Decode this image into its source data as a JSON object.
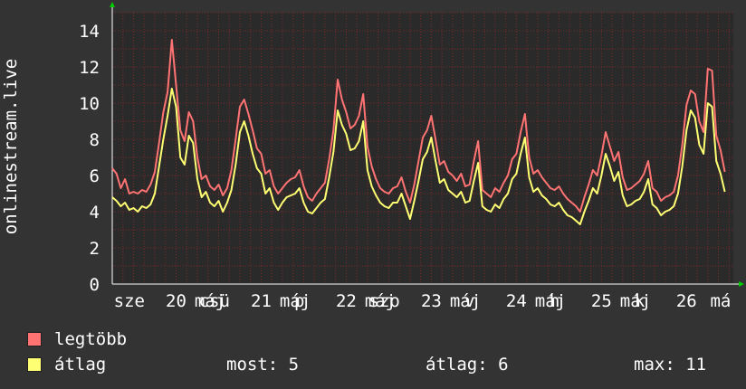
{
  "chart_data": {
    "type": "line",
    "title": "",
    "ylabel": "onlinestream.live",
    "xlabel": "",
    "ylim": [
      0,
      15
    ],
    "yticks": [
      0,
      2,
      4,
      6,
      8,
      10,
      12,
      14
    ],
    "x_tick_labels": [
      {
        "label": "sze",
        "x": 0.2
      },
      {
        "label": "20",
        "x": 0.75
      },
      {
        "label": "máj",
        "x": 1.15
      },
      {
        "label": "csü",
        "x": 1.2
      },
      {
        "label": "21",
        "x": 1.75
      },
      {
        "label": "máj",
        "x": 2.15
      },
      {
        "label": "p",
        "x": 2.2
      },
      {
        "label": "22",
        "x": 2.75
      },
      {
        "label": "máj",
        "x": 3.15
      },
      {
        "label": "szo",
        "x": 3.2
      },
      {
        "label": "23",
        "x": 3.75
      },
      {
        "label": "máj",
        "x": 4.15
      },
      {
        "label": "v",
        "x": 4.2
      },
      {
        "label": "24",
        "x": 4.75
      },
      {
        "label": "máj",
        "x": 5.15
      },
      {
        "label": "h",
        "x": 5.2
      },
      {
        "label": "25",
        "x": 5.75
      },
      {
        "label": "máj",
        "x": 6.15
      },
      {
        "label": "k",
        "x": 6.2
      },
      {
        "label": "26",
        "x": 6.75
      },
      {
        "label": "má",
        "x": 7.15
      }
    ],
    "xlim": [
      0,
      7.3
    ],
    "grid": true,
    "legend_position": "bottom",
    "series": [
      {
        "name": "legtöbb",
        "color": "#ff7373",
        "x": [
          0.0,
          0.05,
          0.1,
          0.15,
          0.2,
          0.25,
          0.3,
          0.35,
          0.4,
          0.45,
          0.5,
          0.55,
          0.6,
          0.65,
          0.7,
          0.75,
          0.8,
          0.85,
          0.9,
          0.95,
          1.0,
          1.05,
          1.1,
          1.15,
          1.2,
          1.25,
          1.3,
          1.35,
          1.4,
          1.45,
          1.5,
          1.55,
          1.6,
          1.65,
          1.7,
          1.75,
          1.8,
          1.85,
          1.9,
          1.95,
          2.0,
          2.05,
          2.1,
          2.15,
          2.2,
          2.25,
          2.3,
          2.35,
          2.4,
          2.45,
          2.5,
          2.55,
          2.6,
          2.65,
          2.7,
          2.75,
          2.8,
          2.85,
          2.9,
          2.95,
          3.0,
          3.05,
          3.1,
          3.15,
          3.2,
          3.25,
          3.3,
          3.35,
          3.4,
          3.45,
          3.5,
          3.55,
          3.6,
          3.65,
          3.7,
          3.75,
          3.8,
          3.85,
          3.9,
          3.95,
          4.0,
          4.05,
          4.1,
          4.15,
          4.2,
          4.25,
          4.3,
          4.35,
          4.4,
          4.45,
          4.5,
          4.55,
          4.6,
          4.65,
          4.7,
          4.75,
          4.8,
          4.85,
          4.9,
          4.95,
          5.0,
          5.05,
          5.1,
          5.15,
          5.2,
          5.25,
          5.3,
          5.35,
          5.4,
          5.45,
          5.5,
          5.55,
          5.6,
          5.65,
          5.7,
          5.75,
          5.8,
          5.85,
          5.9,
          5.95,
          6.0,
          6.05,
          6.1,
          6.15,
          6.2,
          6.25,
          6.3,
          6.35,
          6.4,
          6.45,
          6.5,
          6.55,
          6.6,
          6.65,
          6.7,
          6.75,
          6.8,
          6.85,
          6.9,
          6.95,
          7.0,
          7.05,
          7.1,
          7.15,
          7.2
        ],
        "values": [
          6.4,
          6.1,
          5.3,
          5.8,
          5.0,
          5.1,
          5.0,
          5.2,
          5.1,
          5.5,
          6.2,
          7.8,
          9.5,
          10.6,
          13.5,
          11.0,
          8.5,
          7.9,
          9.5,
          9.0,
          7.0,
          5.8,
          6.0,
          5.4,
          5.2,
          5.5,
          4.9,
          5.3,
          6.3,
          8.0,
          9.8,
          10.2,
          9.4,
          8.5,
          7.5,
          7.2,
          6.1,
          6.3,
          5.4,
          5.0,
          5.3,
          5.6,
          5.8,
          5.9,
          6.3,
          5.4,
          4.8,
          4.6,
          5.0,
          5.3,
          5.6,
          6.9,
          8.5,
          11.3,
          10.2,
          9.5,
          8.6,
          8.8,
          9.3,
          10.5,
          7.6,
          6.5,
          5.8,
          5.3,
          5.1,
          5.0,
          5.3,
          5.4,
          5.9,
          5.1,
          4.5,
          5.5,
          6.8,
          8.1,
          8.5,
          9.3,
          8.0,
          6.6,
          6.8,
          6.2,
          6.0,
          5.7,
          6.1,
          5.4,
          5.5,
          6.8,
          7.9,
          5.2,
          5.0,
          4.8,
          5.3,
          5.1,
          5.6,
          6.0,
          6.9,
          7.2,
          8.4,
          9.4,
          7.0,
          6.1,
          6.3,
          5.9,
          5.6,
          5.3,
          5.2,
          5.4,
          5.0,
          4.7,
          4.5,
          4.3,
          4.0,
          4.8,
          5.5,
          6.3,
          6.0,
          7.1,
          8.4,
          7.6,
          6.8,
          7.3,
          5.9,
          5.2,
          5.3,
          5.5,
          5.7,
          6.1,
          6.8,
          5.3,
          5.1,
          4.6,
          4.8,
          4.9,
          5.1,
          6.0,
          7.7,
          9.9,
          10.7,
          10.5,
          9.0,
          8.4,
          11.9,
          11.8,
          8.2,
          7.4,
          6.2
        ]
      },
      {
        "name": "átlag",
        "color": "#ffff73",
        "x": [
          0.0,
          0.05,
          0.1,
          0.15,
          0.2,
          0.25,
          0.3,
          0.35,
          0.4,
          0.45,
          0.5,
          0.55,
          0.6,
          0.65,
          0.7,
          0.75,
          0.8,
          0.85,
          0.9,
          0.95,
          1.0,
          1.05,
          1.1,
          1.15,
          1.2,
          1.25,
          1.3,
          1.35,
          1.4,
          1.45,
          1.5,
          1.55,
          1.6,
          1.65,
          1.7,
          1.75,
          1.8,
          1.85,
          1.9,
          1.95,
          2.0,
          2.05,
          2.1,
          2.15,
          2.2,
          2.25,
          2.3,
          2.35,
          2.4,
          2.45,
          2.5,
          2.55,
          2.6,
          2.65,
          2.7,
          2.75,
          2.8,
          2.85,
          2.9,
          2.95,
          3.0,
          3.05,
          3.1,
          3.15,
          3.2,
          3.25,
          3.3,
          3.35,
          3.4,
          3.45,
          3.5,
          3.55,
          3.6,
          3.65,
          3.7,
          3.75,
          3.8,
          3.85,
          3.9,
          3.95,
          4.0,
          4.05,
          4.1,
          4.15,
          4.2,
          4.25,
          4.3,
          4.35,
          4.4,
          4.45,
          4.5,
          4.55,
          4.6,
          4.65,
          4.7,
          4.75,
          4.8,
          4.85,
          4.9,
          4.95,
          5.0,
          5.05,
          5.1,
          5.15,
          5.2,
          5.25,
          5.3,
          5.35,
          5.4,
          5.45,
          5.5,
          5.55,
          5.6,
          5.65,
          5.7,
          5.75,
          5.8,
          5.85,
          5.9,
          5.95,
          6.0,
          6.05,
          6.1,
          6.15,
          6.2,
          6.25,
          6.3,
          6.35,
          6.4,
          6.45,
          6.5,
          6.55,
          6.6,
          6.65,
          6.7,
          6.75,
          6.8,
          6.85,
          6.9,
          6.95,
          7.0,
          7.05,
          7.1,
          7.15,
          7.2
        ],
        "values": [
          4.8,
          4.6,
          4.3,
          4.5,
          4.1,
          4.2,
          4.0,
          4.3,
          4.2,
          4.4,
          5.0,
          6.5,
          8.0,
          9.3,
          10.8,
          9.8,
          7.0,
          6.6,
          8.2,
          7.8,
          5.8,
          4.8,
          5.1,
          4.5,
          4.3,
          4.6,
          4.0,
          4.5,
          5.2,
          6.6,
          8.4,
          9.0,
          8.2,
          7.2,
          6.4,
          6.1,
          5.0,
          5.3,
          4.5,
          4.1,
          4.5,
          4.8,
          4.9,
          5.0,
          5.3,
          4.5,
          4.0,
          3.9,
          4.2,
          4.5,
          4.7,
          5.9,
          7.3,
          9.6,
          8.8,
          8.3,
          7.4,
          7.5,
          7.9,
          9.0,
          6.3,
          5.4,
          4.9,
          4.5,
          4.3,
          4.2,
          4.5,
          4.5,
          5.0,
          4.3,
          3.6,
          4.6,
          5.7,
          6.9,
          7.3,
          8.1,
          6.8,
          5.6,
          5.8,
          5.2,
          5.0,
          4.8,
          5.1,
          4.5,
          4.6,
          5.7,
          6.7,
          4.3,
          4.1,
          4.0,
          4.4,
          4.2,
          4.7,
          5.0,
          5.8,
          6.1,
          7.2,
          8.1,
          5.9,
          5.1,
          5.3,
          4.9,
          4.7,
          4.4,
          4.3,
          4.5,
          4.1,
          3.8,
          3.7,
          3.5,
          3.3,
          4.0,
          4.6,
          5.3,
          5.0,
          6.0,
          7.2,
          6.5,
          5.7,
          6.2,
          4.9,
          4.3,
          4.4,
          4.6,
          4.7,
          5.1,
          5.8,
          4.4,
          4.2,
          3.8,
          4.0,
          4.1,
          4.3,
          5.0,
          6.5,
          8.5,
          9.6,
          9.2,
          7.7,
          7.2,
          10.0,
          9.8,
          6.8,
          6.1,
          5.1
        ]
      }
    ]
  },
  "legend": [
    {
      "label": "legtöbb",
      "color": "#ff7373"
    },
    {
      "label": "átlag",
      "color": "#ffff73"
    }
  ],
  "stats": {
    "most": "most: 5",
    "atlag": "átlag: 6",
    "max": "max: 11"
  },
  "colors": {
    "background": "#333333",
    "plot_background": "#2a2a2a",
    "grid": "#7a2a2a",
    "text": "#ffffff"
  }
}
